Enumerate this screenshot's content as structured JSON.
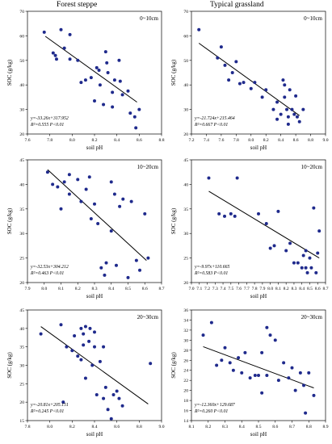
{
  "columns": [
    "Forest steppe",
    "Typical grassland"
  ],
  "chart_data": [
    {
      "type": "scatter",
      "panel": "forest-0-10",
      "depth": "0~10cm",
      "xlabel": "soil pH",
      "ylabel": "SOC (g/kg)",
      "xlim": [
        7.6,
        8.8
      ],
      "ylim": [
        20,
        70
      ],
      "xticks": [
        "7.6",
        "7.8",
        "8.0",
        "8.2",
        "8.4",
        "8.6",
        "8.8"
      ],
      "yticks": [
        "20",
        "30",
        "40",
        "50",
        "60",
        "70"
      ],
      "equation": "y=-33.26x+317.952",
      "r2": "R²=0.555 P<0.01",
      "fit": [
        [
          7.76,
          59.8
        ],
        [
          8.58,
          33.0
        ]
      ],
      "points": [
        [
          7.75,
          61.5
        ],
        [
          7.83,
          53
        ],
        [
          7.85,
          52
        ],
        [
          7.86,
          50.5
        ],
        [
          7.9,
          62.5
        ],
        [
          7.93,
          55
        ],
        [
          7.98,
          60.5
        ],
        [
          7.98,
          50.5
        ],
        [
          8.05,
          50
        ],
        [
          8.08,
          41
        ],
        [
          8.12,
          42
        ],
        [
          8.17,
          43
        ],
        [
          8.2,
          33.5
        ],
        [
          8.22,
          47
        ],
        [
          8.24,
          46
        ],
        [
          8.25,
          40
        ],
        [
          8.28,
          32
        ],
        [
          8.3,
          53.5
        ],
        [
          8.31,
          49
        ],
        [
          8.32,
          45
        ],
        [
          8.36,
          31
        ],
        [
          8.36,
          37
        ],
        [
          8.38,
          42
        ],
        [
          8.42,
          50
        ],
        [
          8.43,
          41.5
        ],
        [
          8.45,
          36
        ],
        [
          8.5,
          37.5
        ],
        [
          8.52,
          28.5
        ],
        [
          8.56,
          27
        ],
        [
          8.57,
          22.5
        ],
        [
          8.6,
          30
        ]
      ]
    },
    {
      "type": "scatter",
      "panel": "grass-0-10",
      "depth": "0~10cm",
      "xlabel": "soil pH",
      "ylabel": "SOC (g/kg)",
      "xlim": [
        7.2,
        9.0
      ],
      "ylim": [
        20,
        70
      ],
      "xticks": [
        "7.2",
        "7.4",
        "7.6",
        "7.8",
        "8.0",
        "8.2",
        "8.4",
        "8.6",
        "8.8",
        "9.0"
      ],
      "yticks": [
        "20",
        "30",
        "40",
        "50",
        "60",
        "70"
      ],
      "equation": "y=-21.724x+215.464",
      "r2": "R²=0.667 P<0.01",
      "fit": [
        [
          7.3,
          57.0
        ],
        [
          8.65,
          27.5
        ]
      ],
      "points": [
        [
          7.3,
          62.5
        ],
        [
          7.55,
          51
        ],
        [
          7.6,
          55.5
        ],
        [
          7.65,
          48
        ],
        [
          7.7,
          42
        ],
        [
          7.75,
          45
        ],
        [
          7.8,
          49.5
        ],
        [
          7.85,
          40.5
        ],
        [
          7.9,
          41
        ],
        [
          8.0,
          38.5
        ],
        [
          8.05,
          41
        ],
        [
          8.15,
          35
        ],
        [
          8.2,
          38
        ],
        [
          8.3,
          30
        ],
        [
          8.35,
          33
        ],
        [
          8.35,
          26
        ],
        [
          8.4,
          28
        ],
        [
          8.43,
          42
        ],
        [
          8.45,
          40
        ],
        [
          8.45,
          35
        ],
        [
          8.48,
          30
        ],
        [
          8.5,
          27
        ],
        [
          8.5,
          24
        ],
        [
          8.52,
          38
        ],
        [
          8.55,
          30
        ],
        [
          8.58,
          28
        ],
        [
          8.6,
          35.5
        ],
        [
          8.62,
          27
        ],
        [
          8.65,
          25
        ],
        [
          8.7,
          30
        ]
      ]
    },
    {
      "type": "scatter",
      "panel": "forest-10-20",
      "depth": "10~20cm",
      "xlabel": "soil pH",
      "ylabel": "SOC (g/kg)",
      "xlim": [
        7.9,
        8.7
      ],
      "ylim": [
        20,
        45
      ],
      "xticks": [
        "7.9",
        "8.0",
        "8.1",
        "8.2",
        "8.3",
        "8.4",
        "8.5",
        "8.6",
        "8.7"
      ],
      "yticks": [
        "20",
        "25",
        "30",
        "35",
        "40",
        "45"
      ],
      "equation": "y=-32.53x+304.212",
      "r2": "R²=0.463 P<0.01",
      "fit": [
        [
          8.02,
          43.0
        ],
        [
          8.61,
          24.5
        ]
      ],
      "points": [
        [
          8.02,
          42.5
        ],
        [
          8.05,
          40
        ],
        [
          8.08,
          39.5
        ],
        [
          8.1,
          35
        ],
        [
          8.12,
          40.5
        ],
        [
          8.15,
          42
        ],
        [
          8.15,
          38
        ],
        [
          8.2,
          41
        ],
        [
          8.22,
          36.5
        ],
        [
          8.25,
          39
        ],
        [
          8.27,
          41.5
        ],
        [
          8.28,
          33
        ],
        [
          8.3,
          36
        ],
        [
          8.32,
          32
        ],
        [
          8.34,
          23
        ],
        [
          8.36,
          21.5
        ],
        [
          8.37,
          24
        ],
        [
          8.4,
          40.5
        ],
        [
          8.4,
          30.5
        ],
        [
          8.42,
          38
        ],
        [
          8.43,
          23.5
        ],
        [
          8.45,
          35.5
        ],
        [
          8.47,
          37
        ],
        [
          8.5,
          21
        ],
        [
          8.52,
          36.5
        ],
        [
          8.55,
          24.5
        ],
        [
          8.57,
          22.5
        ],
        [
          8.6,
          34
        ],
        [
          8.62,
          25
        ]
      ]
    },
    {
      "type": "scatter",
      "panel": "grass-10-20",
      "depth": "10~20cm",
      "xlabel": "soil pH",
      "ylabel": "SOC (g/kg)",
      "xlim": [
        7.0,
        8.7
      ],
      "ylim": [
        20,
        45
      ],
      "xticks": [
        "7.0",
        "7.1",
        "7.2",
        "7.3",
        "7.4",
        "7.5",
        "7.6",
        "7.7",
        "7.8",
        "7.9",
        "8.0",
        "8.1",
        "8.2",
        "8.3",
        "8.4",
        "8.5",
        "8.6",
        "8.7"
      ],
      "yticks": [
        "20",
        "25",
        "30",
        "35",
        "40",
        "45"
      ],
      "equation": "y=-9.97x+110.665",
      "r2": "R²=0.583 P<0.01",
      "fit": [
        [
          7.22,
          38.6
        ],
        [
          8.62,
          25.0
        ]
      ],
      "points": [
        [
          7.22,
          41.3
        ],
        [
          7.35,
          34
        ],
        [
          7.42,
          33.5
        ],
        [
          7.5,
          34
        ],
        [
          7.55,
          33.5
        ],
        [
          7.58,
          41.3
        ],
        [
          7.85,
          34
        ],
        [
          7.95,
          32
        ],
        [
          8.0,
          27
        ],
        [
          8.05,
          27.5
        ],
        [
          8.1,
          34.5
        ],
        [
          8.2,
          26.5
        ],
        [
          8.25,
          28
        ],
        [
          8.3,
          24
        ],
        [
          8.35,
          24
        ],
        [
          8.4,
          23
        ],
        [
          8.42,
          25.5
        ],
        [
          8.45,
          26.5
        ],
        [
          8.45,
          23
        ],
        [
          8.47,
          22
        ],
        [
          8.5,
          25
        ],
        [
          8.52,
          23
        ],
        [
          8.55,
          35.2
        ],
        [
          8.58,
          22
        ],
        [
          8.6,
          26
        ],
        [
          8.62,
          30.5
        ]
      ]
    },
    {
      "type": "scatter",
      "panel": "forest-20-30",
      "depth": "20~30cm",
      "xlabel": "soil pH",
      "ylabel": "SOC (g/kg)",
      "xlim": [
        7.8,
        9.0
      ],
      "ylim": [
        15,
        45
      ],
      "xticks": [
        "7.8",
        "8.0",
        "8.2",
        "8.4",
        "8.6",
        "8.8",
        "9.0"
      ],
      "yticks": [
        "15",
        "20",
        "25",
        "30",
        "35",
        "40",
        "45"
      ],
      "equation": "y=-20.81x+205.151",
      "r2": "R²=0.245 P<0.01",
      "fit": [
        [
          7.92,
          40.5
        ],
        [
          8.88,
          19.5
        ]
      ],
      "points": [
        [
          7.92,
          38.5
        ],
        [
          8.1,
          41
        ],
        [
          8.12,
          20
        ],
        [
          8.15,
          35
        ],
        [
          8.2,
          34
        ],
        [
          8.22,
          38
        ],
        [
          8.25,
          32.5
        ],
        [
          8.28,
          31.5
        ],
        [
          8.28,
          40
        ],
        [
          8.3,
          35.5
        ],
        [
          8.3,
          38.5
        ],
        [
          8.32,
          26.5
        ],
        [
          8.32,
          40.5
        ],
        [
          8.35,
          36.5
        ],
        [
          8.36,
          40
        ],
        [
          8.38,
          30
        ],
        [
          8.4,
          35
        ],
        [
          8.4,
          39
        ],
        [
          8.42,
          22
        ],
        [
          8.45,
          31
        ],
        [
          8.48,
          35
        ],
        [
          8.48,
          21
        ],
        [
          8.5,
          24
        ],
        [
          8.52,
          18
        ],
        [
          8.55,
          15.5
        ],
        [
          8.57,
          22
        ],
        [
          8.6,
          23
        ],
        [
          8.62,
          21
        ],
        [
          8.65,
          19
        ],
        [
          8.9,
          30.5
        ]
      ]
    },
    {
      "type": "scatter",
      "panel": "grass-20-30",
      "depth": "20~30cm",
      "xlabel": "soil pH",
      "ylabel": "SOC (g/kg)",
      "xlim": [
        8.1,
        8.9
      ],
      "ylim": [
        14,
        36
      ],
      "xticks": [
        "8.1",
        "8.2",
        "8.3",
        "8.4",
        "8.5",
        "8.6",
        "8.7",
        "8.8",
        "8.9"
      ],
      "yticks": [
        "14",
        "16",
        "18",
        "20",
        "22",
        "24",
        "26",
        "28",
        "30",
        "32",
        "34",
        "36"
      ],
      "equation": "y=-12.360x+129.687",
      "r2": "R²=0.260 P<0.01",
      "fit": [
        [
          8.17,
          28.7
        ],
        [
          8.83,
          20.5
        ]
      ],
      "points": [
        [
          8.17,
          31
        ],
        [
          8.22,
          33.5
        ],
        [
          8.25,
          25
        ],
        [
          8.28,
          26
        ],
        [
          8.3,
          28.5
        ],
        [
          8.33,
          25.5
        ],
        [
          8.35,
          24
        ],
        [
          8.38,
          26.5
        ],
        [
          8.4,
          23.5
        ],
        [
          8.42,
          27.5
        ],
        [
          8.45,
          22.5
        ],
        [
          8.48,
          23
        ],
        [
          8.5,
          23
        ],
        [
          8.52,
          19.5
        ],
        [
          8.52,
          27.5
        ],
        [
          8.55,
          32.5
        ],
        [
          8.55,
          23
        ],
        [
          8.57,
          31
        ],
        [
          8.6,
          30
        ],
        [
          8.62,
          22
        ],
        [
          8.65,
          25.5
        ],
        [
          8.68,
          22.5
        ],
        [
          8.7,
          24.5
        ],
        [
          8.72,
          20
        ],
        [
          8.75,
          23.5
        ],
        [
          8.77,
          21
        ],
        [
          8.78,
          15.5
        ],
        [
          8.8,
          23.5
        ],
        [
          8.83,
          19
        ]
      ]
    }
  ]
}
